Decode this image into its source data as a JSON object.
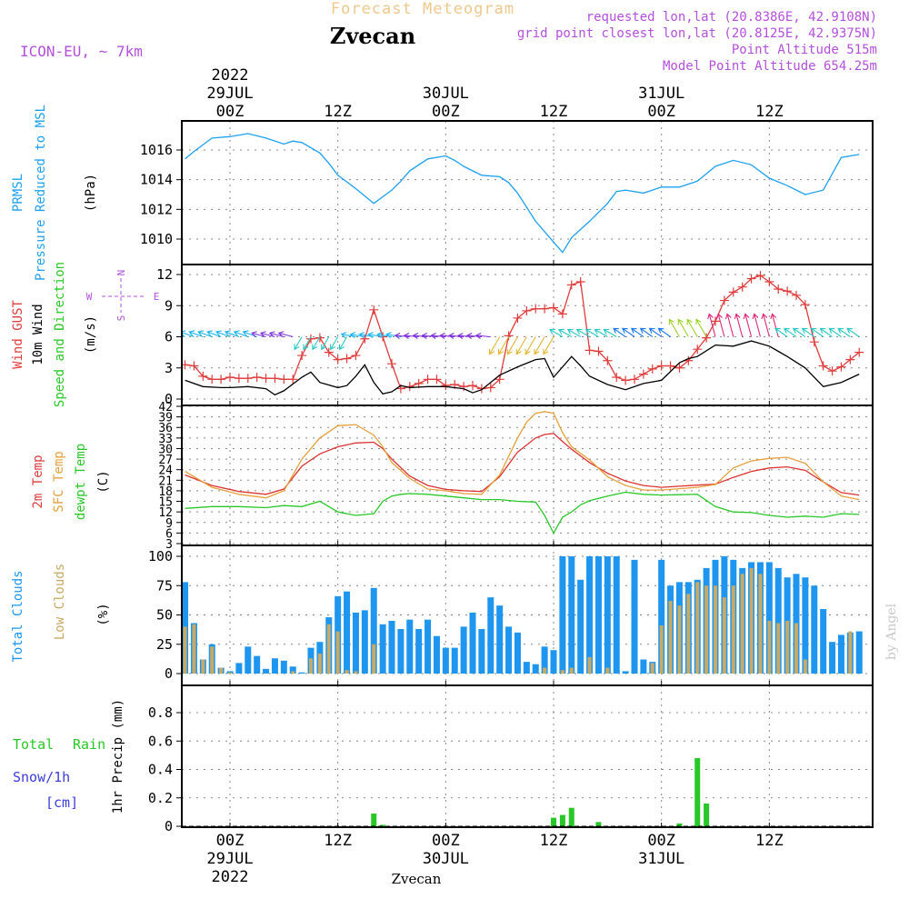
{
  "header": {
    "product": "Forecast Meteogram",
    "station": "Zvecan",
    "model": "ICON-EU, ~ 7km",
    "requested": "requested lon,lat (20.8386E, 42.9108N)",
    "grid_point": "grid point closest lon,lat (20.8125E, 42.9375N)",
    "point_altitude": "Point Altitude 515m",
    "model_altitude": "Model Point Altitude 654.25m",
    "watermark": "by Angel",
    "footer_station": "Zvecan"
  },
  "time_axis": {
    "top": [
      {
        "lines": [
          "2022",
          "29JUL",
          "00Z"
        ]
      },
      {
        "lines": [
          "12Z"
        ]
      },
      {
        "lines": [
          "30JUL",
          "00Z"
        ]
      },
      {
        "lines": [
          "12Z"
        ]
      },
      {
        "lines": [
          "31JUL",
          "00Z"
        ]
      },
      {
        "lines": [
          "12Z"
        ]
      }
    ],
    "bottom": [
      {
        "lines": [
          "00Z",
          "29JUL",
          "2022"
        ]
      },
      {
        "lines": [
          "12Z"
        ]
      },
      {
        "lines": [
          "00Z",
          "30JUL"
        ]
      },
      {
        "lines": [
          "12Z"
        ]
      },
      {
        "lines": [
          "00Z",
          "31JUL"
        ]
      },
      {
        "lines": [
          "12Z"
        ]
      }
    ]
  },
  "panel_labels": {
    "pressure": {
      "name": "PRMSL",
      "desc": "Pressure Reduced to MSL",
      "unit": "(hPa)"
    },
    "wind": {
      "gust": "Wind GUST",
      "wind10": "10m Wind",
      "dir": "Speed and Direction",
      "unit": "(m/s)",
      "compass_n": "N",
      "compass_s": "S",
      "compass_w": "W",
      "compass_e": "E"
    },
    "temp": {
      "t2m": "2m Temp",
      "sfc": "SFC Temp",
      "dew": "dewpt Temp",
      "unit": "(C)"
    },
    "clouds": {
      "total": "Total Clouds",
      "low": "Low Clouds",
      "unit": "(%)"
    },
    "precip": {
      "total": "Total",
      "rain": "Rain",
      "snow": "Snow/1h",
      "snow_unit": "[cm]",
      "axis": "1hr Precip (mm)"
    }
  },
  "colors": {
    "pressure": "#1ea0f0",
    "gust": "#e03c3c",
    "wind": "#000000",
    "t2m": "#dc3232",
    "sfc": "#e6a03c",
    "dew": "#28c828",
    "total_clouds": "#1e96f0",
    "low_clouds": "#c8aa64",
    "rain": "#28c828",
    "snow": "#3c3cdc",
    "label_purple": "#b450dc",
    "header_orange": "#f0c88c"
  },
  "chart_data": [
    {
      "type": "line",
      "title": "",
      "x_unit": "hours from 2022-07-29 00Z",
      "ylim": [
        1008.5,
        1017.8
      ],
      "yticks": [
        1010,
        1012,
        1014,
        1016
      ],
      "series": [
        {
          "name": "PRMSL",
          "x": [
            -5,
            -4,
            -2,
            0,
            2,
            4,
            6,
            7,
            8,
            10,
            11,
            12,
            14,
            16,
            18,
            19,
            20,
            22,
            24,
            25,
            26,
            28,
            30,
            31,
            32,
            34,
            36,
            37,
            38,
            40,
            42,
            43,
            44,
            46,
            47,
            48,
            50,
            52,
            54,
            56,
            58,
            60,
            62,
            64,
            66,
            68,
            70
          ],
          "y": [
            1015.4,
            1015.9,
            1016.8,
            1016.9,
            1017.1,
            1016.8,
            1016.4,
            1016.6,
            1016.5,
            1015.8,
            1015.1,
            1014.3,
            1013.4,
            1012.4,
            1013.3,
            1013.9,
            1014.6,
            1015.4,
            1015.6,
            1015.3,
            1014.9,
            1014.3,
            1014.2,
            1013.8,
            1013.1,
            1011.2,
            1009.8,
            1009.1,
            1010.1,
            1011.2,
            1012.4,
            1013.2,
            1013.3,
            1013.1,
            1013.3,
            1013.5,
            1013.5,
            1013.9,
            1014.9,
            1015.3,
            1015.0,
            1014.1,
            1013.6,
            1013.0,
            1013.3,
            1015.5,
            1015.7
          ]
        }
      ]
    },
    {
      "type": "line",
      "title": "",
      "x_unit": "hours from 2022-07-29 00Z",
      "ylim": [
        0,
        13
      ],
      "yticks": [
        0,
        3,
        6,
        9,
        12
      ],
      "series": [
        {
          "name": "Wind GUST",
          "x": [
            -5,
            -4,
            -3,
            -2,
            -1,
            0,
            1,
            2,
            3,
            4,
            5,
            6,
            7,
            8,
            9,
            10,
            11,
            12,
            13,
            14,
            15,
            16,
            17,
            18,
            19,
            20,
            21,
            22,
            23,
            24,
            25,
            26,
            27,
            28,
            29,
            30,
            31,
            32,
            33,
            34,
            35,
            36,
            37,
            38,
            39,
            40,
            41,
            42,
            43,
            44,
            45,
            46,
            47,
            48,
            49,
            50,
            51,
            52,
            53,
            54,
            55,
            56,
            57,
            58,
            59,
            60,
            61,
            62,
            63,
            64,
            65,
            66,
            67,
            68,
            69,
            70
          ],
          "y": [
            3.3,
            3.2,
            2.2,
            1.9,
            1.9,
            2.1,
            2.0,
            2.0,
            2.1,
            2.0,
            2.0,
            1.9,
            1.9,
            4.2,
            5.8,
            5.9,
            4.5,
            3.8,
            3.9,
            4.2,
            5.8,
            8.6,
            6.0,
            3.4,
            1.0,
            1.2,
            1.5,
            1.9,
            1.9,
            1.3,
            1.4,
            1.2,
            1.3,
            1.0,
            1.1,
            1.9,
            6.1,
            7.8,
            8.5,
            8.7,
            8.7,
            8.8,
            8.2,
            11.0,
            11.3,
            4.7,
            4.6,
            3.7,
            2.1,
            1.8,
            1.9,
            2.4,
            2.9,
            3.2,
            3.2,
            3.0,
            3.7,
            4.8,
            5.9,
            7.5,
            9.5,
            10.3,
            10.8,
            11.6,
            11.9,
            11.3,
            10.6,
            10.4,
            10.0,
            9.1,
            5.5,
            3.2,
            2.7,
            3.1,
            3.8,
            4.5
          ]
        },
        {
          "name": "10m Wind",
          "x": [
            -5,
            -3,
            -1,
            0,
            2,
            4,
            5,
            6,
            8,
            9,
            10,
            12,
            13,
            14,
            15,
            16,
            17,
            18,
            19,
            20,
            22,
            24,
            26,
            27,
            28,
            30,
            32,
            34,
            35,
            36,
            38,
            39,
            40,
            42,
            44,
            46,
            48,
            50,
            51,
            52,
            54,
            56,
            58,
            60,
            61,
            62,
            64,
            66,
            68,
            70
          ],
          "y": [
            1.8,
            1.2,
            1.1,
            1.1,
            1.2,
            1.0,
            0.4,
            0.8,
            2.1,
            2.6,
            1.6,
            1.1,
            1.3,
            2.2,
            3.3,
            1.6,
            0.5,
            0.7,
            1.3,
            1.1,
            1.2,
            1.2,
            1.0,
            0.6,
            0.9,
            2.3,
            3.1,
            3.8,
            3.9,
            2.1,
            4.1,
            3.2,
            2.2,
            1.4,
            0.9,
            1.5,
            1.8,
            3.5,
            3.9,
            4.1,
            5.2,
            5.1,
            5.6,
            5.1,
            4.6,
            4.1,
            3.0,
            1.2,
            1.6,
            2.4
          ]
        }
      ]
    },
    {
      "type": "line",
      "title": "",
      "x_unit": "hours from 2022-07-29 00Z",
      "ylim": [
        3,
        42
      ],
      "yticks": [
        3,
        6,
        9,
        12,
        15,
        18,
        21,
        24,
        27,
        30,
        33,
        36,
        39,
        42
      ],
      "series": [
        {
          "name": "2m Temp",
          "x": [
            -5,
            -2,
            1,
            4,
            6,
            8,
            10,
            12,
            14,
            16,
            17,
            18,
            20,
            22,
            24,
            26,
            28,
            30,
            32,
            33,
            34,
            35,
            36,
            37,
            38,
            40,
            42,
            44,
            46,
            48,
            50,
            52,
            54,
            56,
            58,
            60,
            62,
            64,
            66,
            68,
            70
          ],
          "y": [
            22.5,
            19.5,
            17.8,
            17.0,
            18.5,
            25.0,
            28.5,
            30.5,
            31.6,
            31.8,
            30.0,
            27.0,
            22.2,
            19.5,
            18.4,
            18.0,
            17.8,
            22.0,
            29.0,
            31.0,
            33.0,
            34.0,
            34.3,
            32.0,
            29.8,
            26.0,
            23.0,
            20.8,
            19.5,
            19.0,
            19.3,
            19.6,
            19.9,
            21.8,
            23.5,
            24.5,
            24.8,
            23.8,
            20.5,
            17.5,
            16.8
          ]
        },
        {
          "name": "SFC Temp",
          "x": [
            -5,
            -2,
            1,
            4,
            6,
            8,
            10,
            12,
            14,
            16,
            17,
            18,
            20,
            22,
            24,
            26,
            28,
            30,
            32,
            33,
            34,
            35,
            36,
            37,
            38,
            40,
            42,
            44,
            46,
            48,
            50,
            52,
            54,
            56,
            58,
            60,
            62,
            64,
            66,
            68,
            70
          ],
          "y": [
            23.5,
            19.0,
            17.0,
            16.0,
            18.0,
            27.0,
            33.0,
            36.5,
            36.8,
            33.8,
            30.5,
            26.0,
            21.5,
            18.5,
            18.0,
            17.2,
            17.0,
            22.5,
            33.0,
            37.5,
            40.0,
            40.5,
            40.0,
            34.5,
            30.5,
            26.8,
            22.0,
            19.5,
            18.2,
            18.2,
            18.6,
            19.0,
            19.8,
            24.5,
            26.5,
            27.2,
            27.5,
            25.8,
            20.5,
            16.5,
            15.5
          ]
        },
        {
          "name": "dewpt Temp",
          "x": [
            -5,
            -2,
            1,
            4,
            6,
            8,
            10,
            12,
            14,
            16,
            17,
            18,
            19,
            20,
            22,
            24,
            26,
            28,
            30,
            32,
            34,
            35,
            36,
            37,
            38,
            39,
            40,
            42,
            44,
            46,
            48,
            50,
            52,
            54,
            56,
            58,
            60,
            62,
            64,
            66,
            68,
            70
          ],
          "y": [
            13.0,
            13.5,
            13.5,
            13.2,
            13.8,
            13.5,
            15.0,
            12.0,
            11.0,
            11.5,
            15.0,
            16.5,
            17.0,
            17.2,
            17.0,
            16.5,
            16.0,
            15.5,
            15.5,
            15.0,
            14.8,
            11.0,
            6.0,
            10.5,
            12.0,
            14.0,
            15.2,
            16.5,
            17.6,
            17.0,
            16.8,
            16.9,
            17.0,
            13.5,
            12.0,
            11.8,
            11.0,
            10.5,
            10.8,
            10.5,
            11.5,
            11.3
          ]
        }
      ]
    },
    {
      "type": "bar",
      "title": "",
      "x_unit": "hours from 2022-07-29 00Z",
      "ylim": [
        0,
        105
      ],
      "yticks": [
        0,
        25,
        50,
        75,
        100
      ],
      "x": [
        -5,
        -4,
        -3,
        -2,
        -1,
        0,
        1,
        2,
        3,
        4,
        5,
        6,
        7,
        8,
        9,
        10,
        11,
        12,
        13,
        14,
        15,
        16,
        17,
        18,
        19,
        20,
        21,
        22,
        23,
        24,
        25,
        26,
        27,
        28,
        29,
        30,
        31,
        32,
        33,
        34,
        35,
        36,
        37,
        38,
        39,
        40,
        41,
        42,
        43,
        44,
        45,
        46,
        47,
        48,
        49,
        50,
        51,
        52,
        53,
        54,
        55,
        56,
        57,
        58,
        59,
        60,
        61,
        62,
        63,
        64,
        65,
        66,
        67,
        68,
        69,
        70
      ],
      "series": [
        {
          "name": "Total Clouds",
          "values": [
            78,
            43,
            12,
            25,
            5,
            2,
            9,
            23,
            15,
            4,
            13,
            11,
            6,
            1,
            22,
            27,
            48,
            66,
            70,
            52,
            54,
            73,
            42,
            45,
            38,
            46,
            38,
            46,
            32,
            22,
            22,
            40,
            52,
            38,
            65,
            58,
            40,
            35,
            10,
            8,
            23,
            20,
            100,
            100,
            80,
            100,
            100,
            100,
            100,
            2,
            97,
            12,
            10,
            97,
            75,
            78,
            78,
            80,
            90,
            97,
            100,
            97,
            90,
            95,
            95,
            95,
            90,
            82,
            85,
            82,
            75,
            55,
            27,
            33,
            35,
            36
          ]
        },
        {
          "name": "Low Clouds",
          "values": [
            40,
            42,
            12,
            23,
            5,
            1,
            0,
            0,
            0,
            0,
            0,
            0,
            2,
            0,
            13,
            17,
            42,
            36,
            3,
            2,
            0,
            25,
            0,
            0,
            0,
            0,
            0,
            0,
            0,
            0,
            0,
            0,
            0,
            0,
            0,
            0,
            0,
            0,
            0,
            0,
            5,
            0,
            3,
            5,
            0,
            14,
            0,
            5,
            0,
            0,
            0,
            0,
            9,
            41,
            62,
            58,
            68,
            78,
            75,
            75,
            65,
            75,
            85,
            90,
            85,
            45,
            43,
            45,
            43,
            12,
            0,
            0,
            0,
            0,
            36,
            0
          ]
        }
      ]
    },
    {
      "type": "bar",
      "title": "",
      "x_unit": "hours from 2022-07-29 00Z",
      "ylim": [
        0,
        1.0
      ],
      "yticks": [
        0,
        0.2,
        0.4,
        0.6,
        0.8
      ],
      "series": [
        {
          "name": "Total Rain",
          "x": [
            16,
            17,
            36,
            37,
            38,
            41,
            50,
            52,
            53
          ],
          "values": [
            0.09,
            0.01,
            0.06,
            0.08,
            0.13,
            0.03,
            0.02,
            0.48,
            0.16
          ]
        },
        {
          "name": "Snow/1h",
          "x": [],
          "values": []
        }
      ]
    }
  ]
}
